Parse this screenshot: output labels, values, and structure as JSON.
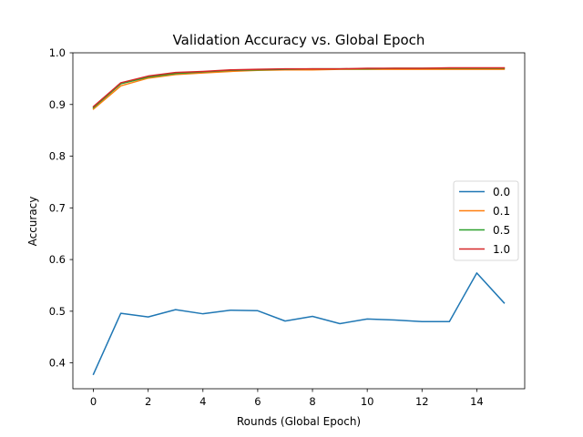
{
  "chart_data": {
    "type": "line",
    "title": "Validation Accuracy vs. Global Epoch",
    "xlabel": "Rounds (Global Epoch)",
    "ylabel": "Accuracy",
    "xlim": [
      -0.75,
      15.75
    ],
    "ylim": [
      0.35,
      1.0
    ],
    "xticks": [
      0,
      2,
      4,
      6,
      8,
      10,
      12,
      14
    ],
    "yticks": [
      0.4,
      0.5,
      0.6,
      0.7,
      0.8,
      0.9,
      1.0
    ],
    "ytick_labels": [
      "0.4",
      "0.5",
      "0.6",
      "0.7",
      "0.8",
      "0.9",
      "1.0"
    ],
    "grid": false,
    "legend_position": "center-right",
    "x": [
      0,
      1,
      2,
      3,
      4,
      5,
      6,
      7,
      8,
      9,
      10,
      11,
      12,
      13,
      14,
      15
    ],
    "series": [
      {
        "name": "0.0",
        "color": "#1f77b4",
        "values": [
          0.378,
          0.496,
          0.489,
          0.503,
          0.495,
          0.502,
          0.501,
          0.481,
          0.49,
          0.476,
          0.485,
          0.483,
          0.48,
          0.48,
          0.574,
          0.516
        ]
      },
      {
        "name": "0.1",
        "color": "#ff7f0e",
        "values": [
          0.891,
          0.936,
          0.951,
          0.958,
          0.961,
          0.964,
          0.966,
          0.967,
          0.967,
          0.968,
          0.968,
          0.968,
          0.968,
          0.968,
          0.968,
          0.968
        ]
      },
      {
        "name": "0.5",
        "color": "#2ca02c",
        "values": [
          0.894,
          0.94,
          0.953,
          0.96,
          0.963,
          0.966,
          0.967,
          0.968,
          0.969,
          0.969,
          0.969,
          0.97,
          0.97,
          0.97,
          0.97,
          0.97
        ]
      },
      {
        "name": "1.0",
        "color": "#d62728",
        "values": [
          0.896,
          0.942,
          0.955,
          0.962,
          0.964,
          0.967,
          0.968,
          0.969,
          0.969,
          0.969,
          0.97,
          0.97,
          0.97,
          0.971,
          0.971,
          0.971
        ]
      }
    ]
  }
}
